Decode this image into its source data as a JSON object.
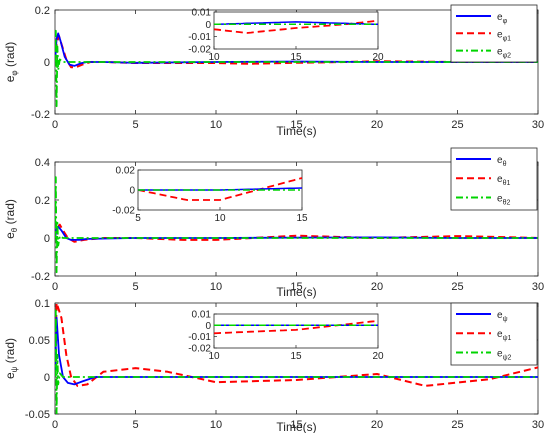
{
  "chart_data": [
    {
      "type": "line",
      "xlabel": "Time(s)",
      "ylabel": {
        "main": "e",
        "sub": "φ",
        "unit": "(rad)"
      },
      "xlim": [
        0,
        30
      ],
      "ylim": [
        -0.2,
        0.2
      ],
      "xticks": [
        "0",
        "5",
        "10",
        "15",
        "20",
        "25",
        "30"
      ],
      "yticks": [
        "-0.2",
        "0",
        "0.2"
      ],
      "legend_position": "top-right",
      "series": [
        {
          "name": "e",
          "name_sub": "φ",
          "color": "#0000ff",
          "dash": "solid",
          "x": [
            0,
            0.1,
            0.2,
            0.35,
            0.6,
            0.9,
            1.2,
            1.6,
            2.0,
            3,
            5,
            10,
            15,
            20,
            25,
            30
          ],
          "y": [
            0,
            0.09,
            0.11,
            0.08,
            0.02,
            -0.01,
            -0.015,
            -0.005,
            0.0,
            0.0,
            -0.003,
            0.0,
            0.002,
            0.0,
            0.0,
            0.0
          ]
        },
        {
          "name": "e",
          "name_sub": "φ1",
          "color": "#ff0000",
          "dash": "dashed",
          "x": [
            0,
            0.1,
            0.25,
            0.4,
            0.7,
            1.0,
            1.3,
            1.7,
            2.2,
            3,
            5,
            10,
            12,
            15,
            18,
            20,
            25,
            30
          ],
          "y": [
            0,
            0.07,
            0.1,
            0.07,
            0.01,
            -0.02,
            -0.02,
            -0.01,
            0.0,
            0.0,
            -0.004,
            -0.004,
            -0.007,
            -0.003,
            0.0,
            0.003,
            0.0,
            0.0
          ]
        },
        {
          "name": "e",
          "name_sub": "φ2",
          "color": "#00d400",
          "dash": "dashdot",
          "x": [
            0,
            0.05,
            0.1,
            0.15,
            0.2,
            0.3,
            0.5,
            1,
            5,
            10,
            20,
            30
          ],
          "y": [
            0,
            0.12,
            -0.17,
            0.06,
            -0.03,
            0.01,
            0.0,
            0.0,
            0.0,
            0.0,
            0.0,
            0.0
          ]
        }
      ],
      "inset": {
        "xlim": [
          10,
          20
        ],
        "ylim": [
          -0.02,
          0.01
        ],
        "xticks": [
          "10",
          "15",
          "20"
        ],
        "yticks": [
          "0.01",
          "0",
          "-0.01",
          "-0.02"
        ]
      }
    },
    {
      "type": "line",
      "xlabel": "Time(s)",
      "ylabel": {
        "main": "e",
        "sub": "θ",
        "unit": "(rad)"
      },
      "xlim": [
        0,
        30
      ],
      "ylim": [
        -0.2,
        0.4
      ],
      "xticks": [
        "0",
        "5",
        "10",
        "15",
        "20",
        "25",
        "30"
      ],
      "yticks": [
        "-0.2",
        "0",
        "0.2",
        "0.4"
      ],
      "legend_position": "top-right",
      "series": [
        {
          "name": "e",
          "name_sub": "θ",
          "color": "#0000ff",
          "dash": "solid",
          "x": [
            0,
            0.1,
            0.2,
            0.4,
            0.7,
            1.0,
            1.5,
            2,
            5,
            10,
            15,
            20,
            25,
            30
          ],
          "y": [
            0,
            0.05,
            0.06,
            0.04,
            0.0,
            -0.01,
            -0.01,
            -0.005,
            0.0,
            0.0,
            0.002,
            0.003,
            0.0,
            0.0
          ]
        },
        {
          "name": "e",
          "name_sub": "θ1",
          "color": "#ff0000",
          "dash": "dashed",
          "x": [
            0,
            0.1,
            0.3,
            0.5,
            0.8,
            1.2,
            1.8,
            3,
            5,
            8,
            10,
            15,
            20,
            25,
            28,
            30
          ],
          "y": [
            0,
            0.05,
            0.07,
            0.04,
            0.0,
            -0.02,
            -0.01,
            0.0,
            0.0,
            -0.01,
            -0.01,
            0.012,
            0.0,
            0.01,
            0.005,
            0.0
          ]
        },
        {
          "name": "e",
          "name_sub": "θ2",
          "color": "#00d400",
          "dash": "dashdot",
          "x": [
            0,
            0.05,
            0.1,
            0.15,
            0.2,
            0.3,
            0.5,
            1,
            5,
            10,
            20,
            30
          ],
          "y": [
            0,
            0.32,
            -0.18,
            0.08,
            -0.04,
            0.01,
            0.0,
            0.0,
            0.0,
            0.0,
            0.0,
            0.0
          ]
        }
      ],
      "inset": {
        "xlim": [
          5,
          15
        ],
        "ylim": [
          -0.02,
          0.02
        ],
        "xticks": [
          "5",
          "10",
          "15"
        ],
        "yticks": [
          "0.02",
          "0",
          "-0.02"
        ]
      }
    },
    {
      "type": "line",
      "xlabel": "Time(s)",
      "ylabel": {
        "main": "e",
        "sub": "ψ",
        "unit": "(rad)"
      },
      "xlim": [
        0,
        30
      ],
      "ylim": [
        -0.05,
        0.1
      ],
      "xticks": [
        "0",
        "5",
        "10",
        "15",
        "20",
        "25",
        "30"
      ],
      "yticks": [
        "-0.05",
        "0",
        "0.05",
        "0.1"
      ],
      "legend_position": "top-right",
      "series": [
        {
          "name": "e",
          "name_sub": "ψ",
          "color": "#0000ff",
          "dash": "solid",
          "x": [
            0,
            0.1,
            0.25,
            0.5,
            0.8,
            1.2,
            1.7,
            2.5,
            4,
            10,
            20,
            30
          ],
          "y": [
            0,
            0.08,
            0.03,
            0.0,
            -0.008,
            -0.01,
            -0.006,
            0.0,
            0.0,
            0.0,
            0.0,
            0.0
          ]
        },
        {
          "name": "e",
          "name_sub": "ψ1",
          "color": "#ff0000",
          "dash": "dashed",
          "x": [
            0,
            0.1,
            0.4,
            0.7,
            1.0,
            1.4,
            2.0,
            3,
            5,
            7,
            10,
            15,
            20,
            23,
            27,
            30
          ],
          "y": [
            0,
            0.1,
            0.08,
            0.03,
            0.0,
            -0.012,
            -0.01,
            0.007,
            0.012,
            0.007,
            -0.007,
            -0.004,
            0.004,
            -0.012,
            -0.003,
            0.013
          ]
        },
        {
          "name": "e",
          "name_sub": "ψ2",
          "color": "#00d400",
          "dash": "dashdot",
          "x": [
            0,
            0.05,
            0.1,
            0.15,
            0.2,
            0.3,
            0.5,
            1,
            5,
            10,
            20,
            30
          ],
          "y": [
            0,
            0.09,
            -0.05,
            0.03,
            -0.01,
            0.005,
            0.0,
            0.0,
            0.0,
            0.0,
            0.0,
            0.0
          ]
        }
      ],
      "inset": {
        "xlim": [
          10,
          20
        ],
        "ylim": [
          -0.02,
          0.01
        ],
        "xticks": [
          "10",
          "15",
          "20"
        ],
        "yticks": [
          "0.01",
          "0",
          "-0.01",
          "-0.02"
        ]
      }
    }
  ]
}
